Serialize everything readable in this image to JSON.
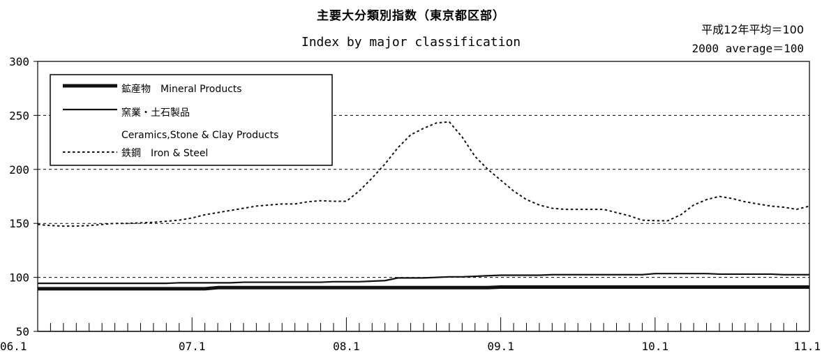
{
  "header": {
    "title_ja": "主要大分類別指数（東京都区部）",
    "title_en": "Index by major classification",
    "base_ja": "平成12年平均＝100",
    "base_en": "2000 average＝100"
  },
  "chart_data": {
    "type": "line",
    "title": "主要大分類別指数（東京都区部） Index by major classification",
    "x_ticks": [
      "06.1",
      "07.1",
      "08.1",
      "09.1",
      "10.1",
      "11.1"
    ],
    "x_range": [
      "06.1",
      "11.1"
    ],
    "y_ticks": [
      "50",
      "100",
      "150",
      "200",
      "250",
      "300"
    ],
    "ylim": [
      50,
      300
    ],
    "gridlines": [
      100,
      150,
      200,
      250
    ],
    "legend": "top-left",
    "series": [
      {
        "name": "鉱産物 Mineral Products",
        "name_lines": [
          "鉱産物　Mineral Products"
        ],
        "style": "thick",
        "x": [
          "06.1",
          "06.2",
          "06.3",
          "06.4",
          "06.5",
          "06.6",
          "06.7",
          "06.8",
          "06.9",
          "06.10",
          "06.11",
          "06.12",
          "07.1",
          "07.2",
          "07.3",
          "07.4",
          "07.5",
          "07.6",
          "07.7",
          "07.8",
          "07.9",
          "07.10",
          "07.11",
          "07.12",
          "08.1",
          "08.2",
          "08.3",
          "08.4",
          "08.5",
          "08.6",
          "08.7",
          "08.8",
          "08.9",
          "08.10",
          "08.11",
          "08.12",
          "09.1",
          "09.2",
          "09.3",
          "09.4",
          "09.5",
          "09.6",
          "09.7",
          "09.8",
          "09.9",
          "09.10",
          "09.11",
          "09.12",
          "10.1",
          "10.2",
          "10.3",
          "10.4",
          "10.5",
          "10.6",
          "10.7",
          "10.8",
          "10.9",
          "10.10",
          "10.11",
          "10.12",
          "11.1"
        ],
        "values": [
          89.5,
          89.5,
          89.5,
          89.5,
          89.5,
          89.5,
          89.5,
          89.5,
          89.5,
          89.5,
          89.5,
          89.5,
          89.5,
          89.5,
          90.5,
          90.5,
          90.5,
          90.5,
          90.5,
          90.5,
          90.5,
          90.5,
          90.5,
          90.5,
          90.5,
          90.5,
          90.5,
          90.5,
          90.5,
          90.5,
          90.5,
          90.5,
          90.5,
          90.5,
          90.5,
          90.5,
          91,
          91,
          91,
          91,
          91,
          91,
          91,
          91,
          91,
          91,
          91,
          91,
          91,
          91,
          91,
          91,
          91,
          91,
          91,
          91,
          91,
          91,
          91,
          91,
          91
        ]
      },
      {
        "name": "窯業・土石製品 Ceramics, Stone & Clay Products",
        "name_lines": [
          "窯業・土石製品",
          "Ceramics,Stone & Clay Products"
        ],
        "style": "solid",
        "x": [
          "06.1",
          "06.2",
          "06.3",
          "06.4",
          "06.5",
          "06.6",
          "06.7",
          "06.8",
          "06.9",
          "06.10",
          "06.11",
          "06.12",
          "07.1",
          "07.2",
          "07.3",
          "07.4",
          "07.5",
          "07.6",
          "07.7",
          "07.8",
          "07.9",
          "07.10",
          "07.11",
          "07.12",
          "08.1",
          "08.2",
          "08.3",
          "08.4",
          "08.5",
          "08.6",
          "08.7",
          "08.8",
          "08.9",
          "08.10",
          "08.11",
          "08.12",
          "09.1",
          "09.2",
          "09.3",
          "09.4",
          "09.5",
          "09.6",
          "09.7",
          "09.8",
          "09.9",
          "09.10",
          "09.11",
          "09.12",
          "10.1",
          "10.2",
          "10.3",
          "10.4",
          "10.5",
          "10.6",
          "10.7",
          "10.8",
          "10.9",
          "10.10",
          "10.11",
          "10.12",
          "11.1"
        ],
        "values": [
          94.5,
          94.5,
          94.5,
          94.5,
          94.5,
          94.5,
          94.5,
          94.5,
          94.5,
          94.5,
          94.5,
          95,
          95,
          95,
          95,
          95,
          95.5,
          95.5,
          95.5,
          95.5,
          95.5,
          95.5,
          95.5,
          96,
          96,
          96,
          96.5,
          97,
          99.5,
          99.5,
          99.5,
          100,
          100.5,
          100.5,
          101,
          101.5,
          102,
          102,
          102,
          102,
          102.5,
          102.5,
          102.5,
          102.5,
          102.5,
          102.5,
          102.5,
          102.5,
          103.5,
          103.5,
          103.5,
          103.5,
          103.5,
          103,
          103,
          103,
          103,
          103,
          102.5,
          102.5,
          102.5
        ]
      },
      {
        "name": "鉄鋼 Iron & Steel",
        "name_lines": [
          "鉄鋼　Iron & Steel"
        ],
        "style": "dashed",
        "x": [
          "06.1",
          "06.2",
          "06.3",
          "06.4",
          "06.5",
          "06.6",
          "06.7",
          "06.8",
          "06.9",
          "06.10",
          "06.11",
          "06.12",
          "07.1",
          "07.2",
          "07.3",
          "07.4",
          "07.5",
          "07.6",
          "07.7",
          "07.8",
          "07.9",
          "07.10",
          "07.11",
          "07.12",
          "08.1",
          "08.2",
          "08.3",
          "08.4",
          "08.5",
          "08.6",
          "08.7",
          "08.8",
          "08.9",
          "08.10",
          "08.11",
          "08.12",
          "09.1",
          "09.2",
          "09.3",
          "09.4",
          "09.5",
          "09.6",
          "09.7",
          "09.8",
          "09.9",
          "09.10",
          "09.11",
          "09.12",
          "10.1",
          "10.2",
          "10.3",
          "10.4",
          "10.5",
          "10.6",
          "10.7",
          "10.8",
          "10.9",
          "10.10",
          "10.11",
          "10.12",
          "11.1"
        ],
        "values": [
          149,
          148,
          147.5,
          147.5,
          148,
          149,
          150,
          150,
          150.5,
          151,
          152,
          153,
          155,
          158,
          160,
          162,
          164,
          166,
          167,
          168,
          168,
          170,
          171,
          170.5,
          170.5,
          180,
          192,
          205,
          220,
          232,
          238,
          243,
          244,
          230,
          212,
          200,
          190,
          180,
          172,
          167,
          164,
          163,
          163,
          163,
          163,
          160,
          157,
          153,
          152.5,
          152.5,
          158,
          167,
          172,
          175,
          173,
          170,
          168,
          166,
          165,
          163,
          166
        ]
      }
    ]
  }
}
